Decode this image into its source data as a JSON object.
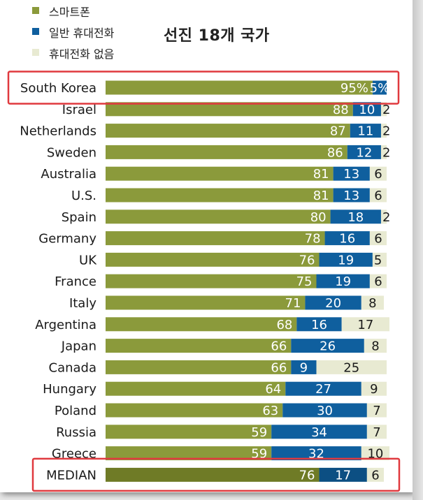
{
  "legend": [
    {
      "label": "스마트폰",
      "color": "#8b9a3b"
    },
    {
      "label": "일반 휴대전화",
      "color": "#0f5f9e"
    },
    {
      "label": "휴대전화 없음",
      "color": "#e8ead2"
    }
  ],
  "title": "선진 18개 국가",
  "colors": {
    "smartphone": "#8b9a3b",
    "basic": "#0f5f9e",
    "none": "#e8ead2",
    "median_smartphone": "#6f7b26",
    "median_basic": "#0c4f83",
    "highlight": "#e0393e"
  },
  "highlighted": [
    "South Korea",
    "MEDIAN"
  ],
  "chart_data": {
    "type": "bar",
    "orientation": "horizontal",
    "stacked": true,
    "title": "선진 18개 국가",
    "categories": [
      "South Korea",
      "Israel",
      "Netherlands",
      "Sweden",
      "Australia",
      "U.S.",
      "Spain",
      "Germany",
      "UK",
      "France",
      "Italy",
      "Argentina",
      "Japan",
      "Canada",
      "Hungary",
      "Poland",
      "Russia",
      "Greece",
      "MEDIAN"
    ],
    "series": [
      {
        "name": "스마트폰",
        "values": [
          95,
          88,
          87,
          86,
          81,
          81,
          80,
          78,
          76,
          75,
          71,
          68,
          66,
          66,
          64,
          63,
          59,
          59,
          76
        ]
      },
      {
        "name": "일반 휴대전화",
        "values": [
          5,
          10,
          11,
          12,
          13,
          13,
          18,
          16,
          19,
          19,
          20,
          16,
          26,
          9,
          27,
          30,
          34,
          32,
          17
        ]
      },
      {
        "name": "휴대전화 없음",
        "values": [
          0,
          2,
          2,
          2,
          6,
          6,
          2,
          6,
          5,
          6,
          8,
          17,
          8,
          25,
          9,
          7,
          7,
          10,
          6
        ]
      }
    ],
    "value_labels": [
      [
        "95%",
        "5%",
        ""
      ],
      [
        "88",
        "10",
        "2"
      ],
      [
        "87",
        "11",
        "2"
      ],
      [
        "86",
        "12",
        "2"
      ],
      [
        "81",
        "13",
        "6"
      ],
      [
        "81",
        "13",
        "6"
      ],
      [
        "80",
        "18",
        "2"
      ],
      [
        "78",
        "16",
        "6"
      ],
      [
        "76",
        "19",
        "5"
      ],
      [
        "75",
        "19",
        "6"
      ],
      [
        "71",
        "20",
        "8"
      ],
      [
        "68",
        "16",
        "17"
      ],
      [
        "66",
        "26",
        "8"
      ],
      [
        "66",
        "9",
        "25"
      ],
      [
        "64",
        "27",
        "9"
      ],
      [
        "63",
        "30",
        "7"
      ],
      [
        "59",
        "34",
        "7"
      ],
      [
        "59",
        "32",
        "10"
      ],
      [
        "76",
        "17",
        "6"
      ]
    ],
    "xlim": [
      0,
      100
    ]
  }
}
